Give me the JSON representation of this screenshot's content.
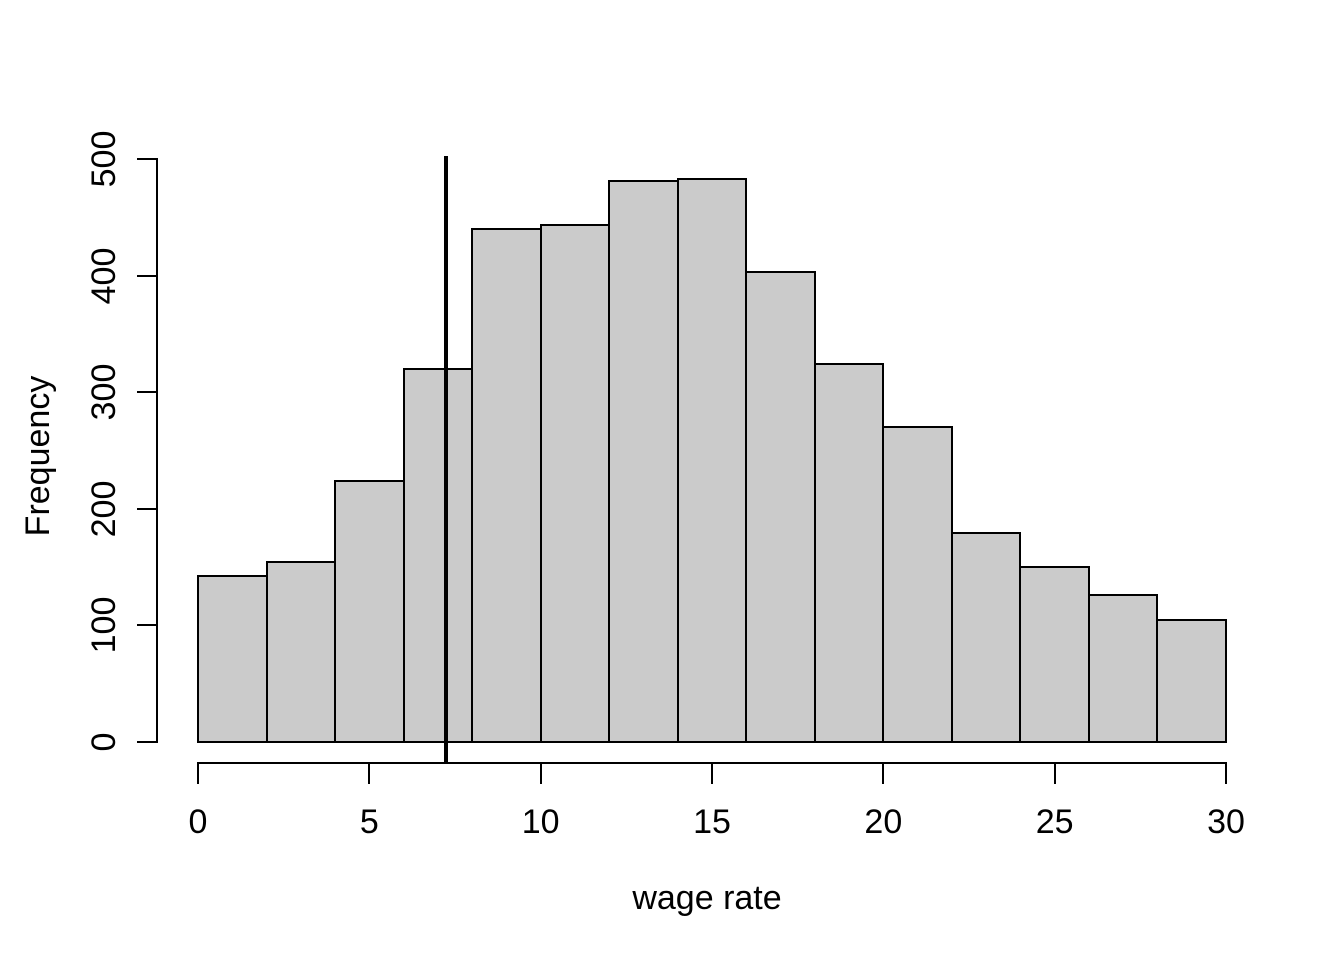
{
  "figure": {
    "background": "#ffffff",
    "text_color": "#000000"
  },
  "chart_data": {
    "type": "bar",
    "subtype": "histogram",
    "title": "",
    "xlabel": "wage rate",
    "ylabel": "Frequency",
    "bin_edges": [
      0,
      2,
      4,
      6,
      8,
      10,
      12,
      14,
      16,
      18,
      20,
      22,
      24,
      26,
      28,
      30
    ],
    "counts": [
      142,
      154,
      224,
      320,
      440,
      443,
      481,
      483,
      403,
      324,
      270,
      179,
      150,
      126,
      105
    ],
    "x_ticks": [
      0,
      5,
      10,
      15,
      20,
      25,
      30
    ],
    "y_ticks": [
      0,
      100,
      200,
      300,
      400,
      500
    ],
    "xlim": [
      0,
      30
    ],
    "ylim": [
      0,
      500
    ],
    "grid": false,
    "legend": false,
    "bar_fill": "#cbcbcb",
    "bar_border": "#000000",
    "vline": {
      "x": 7.25,
      "color": "#000000"
    }
  }
}
